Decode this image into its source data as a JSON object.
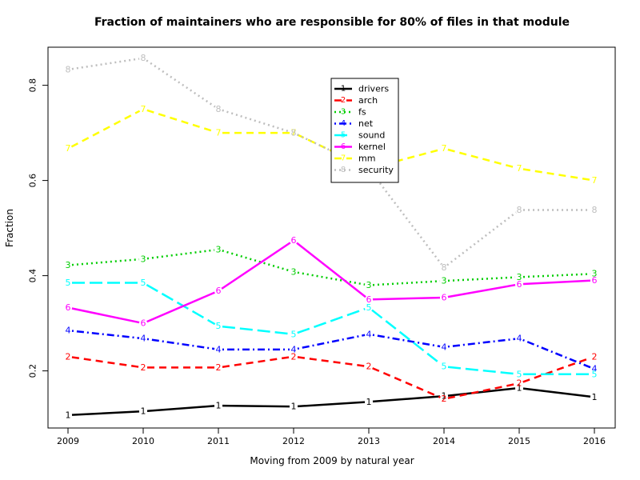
{
  "chart_data": {
    "type": "line",
    "title": "Fraction of maintainers who are responsible for 80% of files in that module",
    "xlabel": "Moving from 2009 by natural year",
    "ylabel": "Fraction",
    "x": [
      2009,
      2010,
      2011,
      2012,
      2013,
      2014,
      2015,
      2016
    ],
    "xticks": [
      "2009",
      "2010",
      "2011",
      "2012",
      "2013",
      "2014",
      "2015",
      "2016"
    ],
    "yticks": [
      "0.2",
      "0.4",
      "0.6",
      "0.8"
    ],
    "ylim": [
      0.08,
      0.88
    ],
    "grid": false,
    "legend": "top-center",
    "series": [
      {
        "name": "drivers",
        "symbol": "1",
        "color": "#000000",
        "dash": "solid",
        "values": [
          0.107,
          0.115,
          0.127,
          0.125,
          0.135,
          0.147,
          0.164,
          0.145
        ]
      },
      {
        "name": "arch",
        "symbol": "2",
        "color": "#ff0000",
        "dash": "dashed",
        "values": [
          0.23,
          0.207,
          0.207,
          0.23,
          0.209,
          0.141,
          0.174,
          0.23
        ]
      },
      {
        "name": "fs",
        "symbol": "3",
        "color": "#00cd00",
        "dash": "dotted",
        "values": [
          0.422,
          0.435,
          0.455,
          0.408,
          0.38,
          0.389,
          0.397,
          0.404
        ]
      },
      {
        "name": "net",
        "symbol": "4",
        "color": "#0000ff",
        "dash": "dotdash",
        "values": [
          0.285,
          0.268,
          0.245,
          0.245,
          0.277,
          0.25,
          0.268,
          0.204
        ]
      },
      {
        "name": "sound",
        "symbol": "5",
        "color": "#00ffff",
        "dash": "longdash",
        "values": [
          0.385,
          0.385,
          0.294,
          0.277,
          0.333,
          0.209,
          0.193,
          0.193
        ]
      },
      {
        "name": "kernel",
        "symbol": "6",
        "color": "#ff00ff",
        "dash": "solid",
        "values": [
          0.333,
          0.3,
          0.368,
          0.474,
          0.35,
          0.354,
          0.382,
          0.39
        ]
      },
      {
        "name": "mm",
        "symbol": "7",
        "color": "#ffff00",
        "dash": "dashed",
        "values": [
          0.667,
          0.75,
          0.7,
          0.7,
          0.625,
          0.667,
          0.625,
          0.6
        ]
      },
      {
        "name": "security",
        "symbol": "8",
        "color": "#bebebe",
        "dash": "dotted",
        "values": [
          0.833,
          0.857,
          0.75,
          0.7,
          0.625,
          0.417,
          0.538,
          0.538
        ]
      }
    ]
  }
}
